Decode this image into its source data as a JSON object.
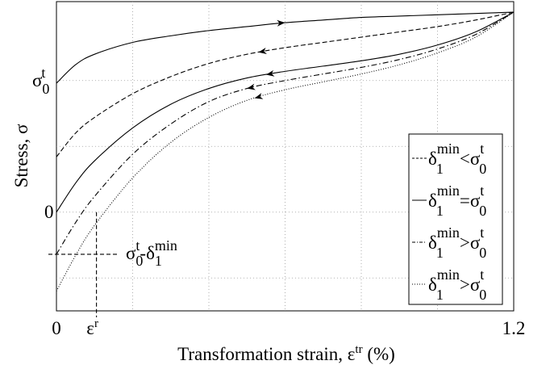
{
  "chart_data": {
    "type": "line",
    "xlabel": {
      "main": "Transformation strain, ε",
      "sup": "tr",
      "tail": " (%)"
    },
    "ylabel": "Stress, σ",
    "xlim": [
      0,
      1.2
    ],
    "xticks": [
      {
        "value": 0,
        "label": "0"
      },
      {
        "value": 1.2,
        "label": "1.2"
      }
    ],
    "x_grid": [
      0.2,
      0.4,
      0.6,
      0.8,
      1.0
    ],
    "ylim": [
      -0.75,
      1.6
    ],
    "yticks": [
      {
        "value": 1.0,
        "label": "σ",
        "sub": "0",
        "sup": "t"
      },
      {
        "value": 0.0,
        "label": "0"
      }
    ],
    "y_grid": [
      1.0,
      0.5,
      0.0,
      -0.5
    ],
    "grid": true,
    "series": [
      {
        "style": "solid",
        "x": [
          0,
          0.05,
          0.1,
          0.2,
          0.3,
          0.4,
          0.5,
          0.6,
          0.7,
          0.8,
          0.9,
          1.0,
          1.1,
          1.2
        ],
        "y": [
          0.98,
          1.12,
          1.2,
          1.29,
          1.34,
          1.38,
          1.41,
          1.44,
          1.46,
          1.48,
          1.49,
          1.5,
          1.51,
          1.52
        ],
        "arrow_at": 0.6
      },
      {
        "name": "δ₁min<σ₀t",
        "style": "dashed",
        "x": [
          0,
          0.05,
          0.1,
          0.2,
          0.3,
          0.4,
          0.5,
          0.6,
          0.7,
          0.8,
          0.9,
          1.0,
          1.1,
          1.2
        ],
        "y": [
          0.42,
          0.6,
          0.72,
          0.9,
          1.03,
          1.13,
          1.2,
          1.25,
          1.29,
          1.33,
          1.37,
          1.41,
          1.46,
          1.52
        ],
        "arrow_at": 0.53
      },
      {
        "name": "δ₁min=σ₀t",
        "style": "solid",
        "x": [
          0,
          0.05,
          0.1,
          0.2,
          0.3,
          0.4,
          0.5,
          0.6,
          0.7,
          0.8,
          0.9,
          1.0,
          1.1,
          1.2
        ],
        "y": [
          0.0,
          0.22,
          0.39,
          0.64,
          0.82,
          0.94,
          1.02,
          1.07,
          1.11,
          1.15,
          1.2,
          1.27,
          1.37,
          1.52
        ],
        "arrow_at": 0.55
      },
      {
        "name": "δ₁min>σ₀t",
        "style": "dashdot",
        "x": [
          0,
          0.05,
          0.1,
          0.2,
          0.3,
          0.4,
          0.5,
          0.6,
          0.7,
          0.8,
          0.9,
          1.0,
          1.1,
          1.2
        ],
        "y": [
          -0.32,
          -0.08,
          0.12,
          0.44,
          0.67,
          0.84,
          0.94,
          1.0,
          1.05,
          1.1,
          1.16,
          1.24,
          1.35,
          1.52
        ],
        "arrow_at": 0.5
      },
      {
        "name": "δ₁min>σ₀t",
        "style": "dotted",
        "x": [
          0,
          0.05,
          0.1,
          0.2,
          0.3,
          0.4,
          0.5,
          0.6,
          0.7,
          0.8,
          0.9,
          1.0,
          1.1,
          1.2
        ],
        "y": [
          -0.6,
          -0.33,
          -0.1,
          0.26,
          0.53,
          0.72,
          0.85,
          0.93,
          0.99,
          1.05,
          1.12,
          1.21,
          1.33,
          1.52
        ],
        "arrow_at": 0.52
      }
    ],
    "legend": {
      "placement": "right",
      "entries": [
        {
          "style": "dashed",
          "text": "δ",
          "sub": "1",
          "sup": "min",
          "op": "<",
          "text2": "σ",
          "sub2": "0",
          "sup2": "t"
        },
        {
          "style": "solid",
          "text": "δ",
          "sub": "1",
          "sup": "min",
          "op": "=",
          "text2": "σ",
          "sub2": "0",
          "sup2": "t"
        },
        {
          "style": "dashdot",
          "text": "δ",
          "sub": "1",
          "sup": "min",
          "op": ">",
          "text2": "σ",
          "sub2": "0",
          "sup2": "t"
        },
        {
          "style": "dotted",
          "text": "δ",
          "sub": "1",
          "sup": "min",
          "op": ">",
          "text2": "σ",
          "sub2": "0",
          "sup2": "t"
        }
      ]
    },
    "annotations": {
      "residual_strain": {
        "x": 0.105,
        "y": 0.0,
        "label": "ε",
        "sup": "r"
      },
      "residual_stress": {
        "x": 0.0,
        "y": -0.32,
        "label": "σ",
        "sub": "0",
        "sup": "t",
        "mid": "-δ",
        "sub2": "1",
        "sup2": "min"
      }
    }
  }
}
